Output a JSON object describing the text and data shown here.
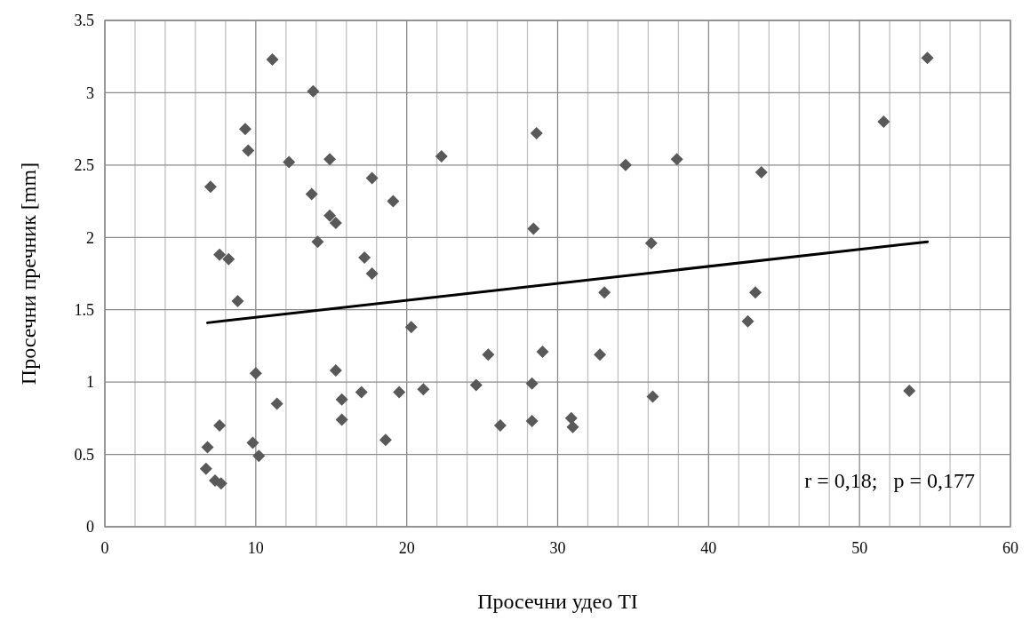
{
  "chart_data": {
    "type": "scatter",
    "xlabel": "Просечни удео TI",
    "ylabel": "Просечни пречник [mm]",
    "xlim": [
      0,
      60
    ],
    "ylim": [
      0,
      3.5
    ],
    "xticks": [
      0,
      {
        "value": 2,
        "label": null
      },
      {
        "value": 4,
        "label": null
      },
      {
        "value": 6,
        "label": null
      },
      {
        "value": 8,
        "label": null
      },
      10,
      {
        "value": 12,
        "label": null
      },
      {
        "value": 14,
        "label": null
      },
      {
        "value": 16,
        "label": null
      },
      {
        "value": 18,
        "label": null
      },
      20,
      {
        "value": 22,
        "label": null
      },
      {
        "value": 24,
        "label": null
      },
      {
        "value": 26,
        "label": null
      },
      {
        "value": 28,
        "label": null
      },
      30,
      {
        "value": 32,
        "label": null
      },
      {
        "value": 34,
        "label": null
      },
      {
        "value": 36,
        "label": null
      },
      {
        "value": 38,
        "label": null
      },
      40,
      {
        "value": 42,
        "label": null
      },
      {
        "value": 44,
        "label": null
      },
      {
        "value": 46,
        "label": null
      },
      {
        "value": 48,
        "label": null
      },
      50,
      {
        "value": 52,
        "label": null
      },
      {
        "value": 54,
        "label": null
      },
      {
        "value": 56,
        "label": null
      },
      {
        "value": 58,
        "label": null
      },
      60
    ],
    "yticks": [
      0,
      0.5,
      1,
      1.5,
      2,
      2.5,
      3,
      3.5
    ],
    "grid": true,
    "annotations": [
      "r = 0,18;   p = 0,177"
    ],
    "series": [
      {
        "marker": "diamond",
        "color": "#595959",
        "x": [
          6.7,
          6.8,
          7.0,
          7.3,
          7.7,
          7.6,
          7.6,
          8.2,
          8.8,
          9.3,
          9.5,
          9.8,
          10.0,
          10.2,
          11.1,
          11.4,
          12.2,
          13.7,
          13.8,
          14.1,
          14.9,
          14.9,
          15.3,
          15.3,
          15.7,
          15.7,
          17.0,
          17.2,
          17.7,
          17.7,
          18.6,
          19.1,
          19.5,
          20.3,
          21.1,
          22.3,
          24.6,
          25.4,
          26.2,
          28.3,
          28.3,
          28.4,
          28.6,
          29.0,
          30.9,
          31.0,
          32.8,
          33.1,
          34.5,
          36.2,
          36.3,
          37.9,
          42.6,
          43.1,
          43.5,
          51.6,
          53.3,
          54.5
        ],
        "values": [
          0.4,
          0.55,
          2.35,
          0.32,
          0.3,
          0.7,
          1.88,
          1.85,
          1.56,
          2.75,
          2.6,
          0.58,
          1.06,
          0.49,
          3.23,
          0.85,
          2.52,
          2.3,
          3.01,
          1.97,
          2.54,
          2.15,
          2.1,
          1.08,
          0.88,
          0.74,
          0.93,
          1.86,
          1.75,
          2.41,
          0.6,
          2.25,
          0.93,
          1.38,
          0.95,
          2.56,
          0.98,
          1.19,
          0.7,
          0.99,
          0.73,
          2.06,
          2.72,
          1.21,
          0.75,
          0.69,
          1.19,
          1.62,
          2.5,
          1.96,
          0.9,
          2.54,
          1.42,
          1.62,
          2.45,
          2.8,
          0.94,
          3.24
        ]
      },
      {
        "type": "line",
        "color": "#000000",
        "x": [
          6.8,
          54.5
        ],
        "values": [
          1.41,
          1.97
        ]
      }
    ]
  }
}
